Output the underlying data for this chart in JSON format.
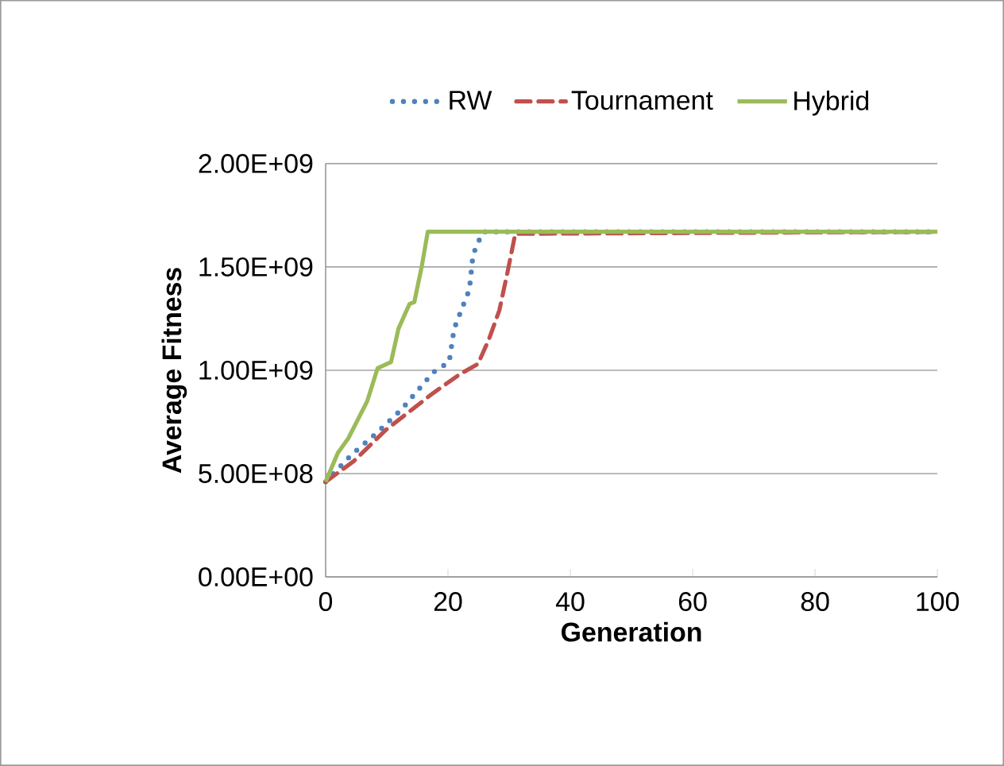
{
  "chart_data": {
    "type": "line",
    "xlabel": "Generation",
    "ylabel": "Average Fitness",
    "xlim": [
      0,
      100
    ],
    "xticks": [
      0,
      20,
      40,
      60,
      80,
      100
    ],
    "ylim": [
      0,
      2000000000
    ],
    "yticks": [
      {
        "value": 0,
        "label": "0.00E+00"
      },
      {
        "value": 500000000,
        "label": "5.00E+08"
      },
      {
        "value": 1000000000,
        "label": "1.00E+09"
      },
      {
        "value": 1500000000,
        "label": "1.50E+09"
      },
      {
        "value": 2000000000,
        "label": "2.00E+09"
      }
    ],
    "grid": "y",
    "legend": "top",
    "series": [
      {
        "name": "RW",
        "color": "#4f81bd",
        "line_style": "dotted",
        "x": [
          0,
          4.2,
          8.5,
          12.4,
          17.6,
          20.2,
          21,
          22.3,
          23.5,
          24.1,
          25.4,
          25.8,
          100
        ],
        "values": [
          460000000,
          590000000,
          700000000,
          810000000,
          990000000,
          1040000000,
          1200000000,
          1300000000,
          1390000000,
          1560000000,
          1650000000,
          1670000000,
          1670000000
        ]
      },
      {
        "name": "Tournament",
        "color": "#c0504d",
        "line_style": "dashed",
        "x": [
          0,
          4.6,
          9.8,
          17.6,
          21.9,
          24.9,
          26.7,
          28.4,
          29.7,
          31,
          100
        ],
        "values": [
          460000000,
          560000000,
          710000000,
          890000000,
          980000000,
          1030000000,
          1150000000,
          1290000000,
          1470000000,
          1660000000,
          1670000000
        ]
      },
      {
        "name": "Hybrid",
        "color": "#9bbb59",
        "line_style": "solid",
        "x": [
          0,
          2,
          3.7,
          6.8,
          8.5,
          10.7,
          11.9,
          13.7,
          14.5,
          15.7,
          16.7,
          100
        ],
        "values": [
          460000000,
          600000000,
          670000000,
          850000000,
          1010000000,
          1040000000,
          1200000000,
          1320000000,
          1330000000,
          1500000000,
          1670000000,
          1670000000
        ]
      }
    ]
  }
}
